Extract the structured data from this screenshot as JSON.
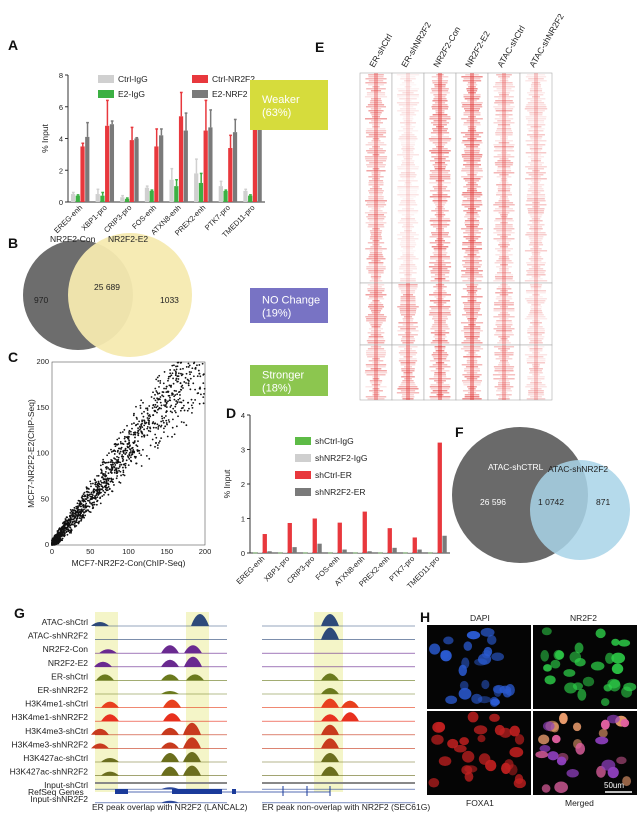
{
  "panels": {
    "A": "A",
    "B": "B",
    "C": "C",
    "D": "D",
    "E": "E",
    "F": "F",
    "G": "G",
    "H": "H"
  },
  "chart_a": {
    "type": "bar",
    "ylabel": "% Input",
    "ylim": [
      0,
      8
    ],
    "yticks": [
      0,
      2,
      4,
      6,
      8
    ],
    "categories": [
      "EREG-enh",
      "XBP1-pro",
      "CRIP3-pro",
      "FOS-enh",
      "ATXN8-enh",
      "PREX2-enh",
      "PTK7-pro",
      "TMED11-pro"
    ],
    "series": [
      {
        "name": "Ctrl-IgG",
        "color": "#d0d0d0",
        "values": [
          0.5,
          0.5,
          0.3,
          0.9,
          1.4,
          1.8,
          1.0,
          0.7
        ],
        "err": [
          0.1,
          0.3,
          0.1,
          0.1,
          0.7,
          0.9,
          0.3,
          0.1
        ]
      },
      {
        "name": "E2-IgG",
        "color": "#3cb043",
        "values": [
          0.4,
          0.4,
          0.2,
          0.7,
          1.0,
          1.2,
          0.7,
          0.4
        ],
        "err": [
          0.05,
          0.2,
          0.05,
          0.05,
          0.4,
          0.6,
          0.05,
          0.05
        ]
      },
      {
        "name": "Ctrl-NR2F2",
        "color": "#e8383d",
        "values": [
          3.5,
          4.8,
          3.9,
          3.5,
          5.4,
          4.5,
          3.4,
          5.0
        ],
        "err": [
          0.2,
          1.6,
          0.8,
          1.1,
          1.5,
          1.9,
          0.8,
          1.6
        ]
      },
      {
        "name": "E2-NRF2",
        "color": "#7a7a7a",
        "values": [
          4.1,
          4.9,
          4.0,
          4.2,
          4.5,
          4.7,
          4.4,
          5.5
        ],
        "err": [
          0.9,
          0.2,
          0.05,
          0.4,
          1.1,
          1.1,
          0.8,
          1.0
        ]
      }
    ]
  },
  "venn_b": {
    "left": "NR2F2-Con",
    "right": "NR2F2-E2",
    "left_only": "970",
    "both": "25 689",
    "right_only": "1033"
  },
  "chart_c": {
    "type": "scatter",
    "xlabel": "MCF7-NR2F2-Con(ChIP-Seq)",
    "ylabel": "MCF7-NR2F2-E2(ChIP-Seq)",
    "xlim": [
      0,
      200
    ],
    "ylim": [
      0,
      200
    ],
    "ticks": [
      0,
      50,
      100,
      150,
      200
    ]
  },
  "chart_d": {
    "type": "bar",
    "ylabel": "% Input",
    "ylim": [
      0,
      4
    ],
    "yticks": [
      0,
      1,
      2,
      3,
      4
    ],
    "categories": [
      "EREG-enh",
      "XBP1-pro",
      "CRIP3-pro",
      "FOS-enh",
      "ATXN8-enh",
      "PREX2-enh",
      "PTK7-pro",
      "TMED11-pro"
    ],
    "series": [
      {
        "name": "shCtrl-IgG",
        "color": "#5dbb46",
        "values": [
          0.01,
          0.01,
          0.01,
          0.01,
          0.01,
          0.01,
          0.01,
          0.01
        ]
      },
      {
        "name": "shNR2F2-IgG",
        "color": "#cfcfcf",
        "values": [
          0.02,
          0.02,
          0.02,
          0.02,
          0.02,
          0.02,
          0.02,
          0.03
        ]
      },
      {
        "name": "shCtrl-ER",
        "color": "#e8383d",
        "values": [
          0.55,
          0.87,
          1.0,
          0.88,
          1.2,
          0.72,
          0.45,
          3.2
        ]
      },
      {
        "name": "shNR2F2-ER",
        "color": "#7a7a7a",
        "values": [
          0.05,
          0.17,
          0.27,
          0.1,
          0.05,
          0.15,
          0.1,
          0.5
        ]
      }
    ]
  },
  "heatmap_e": {
    "columns": [
      "ER-shCtrl",
      "ER-shNR2F2",
      "NR2F2-Con",
      "NR2F2-E2",
      "ATAC-shCtrl",
      "ATAC-shNR2F2"
    ],
    "groups": [
      {
        "label": "Weaker",
        "pct": "(63%)",
        "color": "#d6dc3c"
      },
      {
        "label": "NO Change",
        "pct": "(19%)",
        "color": "#7873c4"
      },
      {
        "label": "Stronger",
        "pct": "(18%)",
        "color": "#8cc64f"
      }
    ]
  },
  "venn_f": {
    "left": "ATAC-shCTRL",
    "right": "ATAC-shNR2F2",
    "left_only": "26 596",
    "both": "1 0742",
    "right_only": "871"
  },
  "tracks_g": {
    "tracks": [
      {
        "name": "ATAC-shCtrl",
        "color": "#2e4a7a"
      },
      {
        "name": "ATAC-shNR2F2",
        "color": "#2e4a7a"
      },
      {
        "name": "NR2F2-Con",
        "color": "#6a2a90"
      },
      {
        "name": "NR2F2-E2",
        "color": "#6a2a90"
      },
      {
        "name": "ER-shCtrl",
        "color": "#6b7a1e"
      },
      {
        "name": "ER-shNR2F2",
        "color": "#6b7a1e"
      },
      {
        "name": "H3K4me1-shCtrl",
        "color": "#e8401e"
      },
      {
        "name": "H3K4me1-shNR2F2",
        "color": "#e8301e"
      },
      {
        "name": "H3K4me3-shCtrl",
        "color": "#c83a1e"
      },
      {
        "name": "H3K4me3-shNR2F2",
        "color": "#c83a1e"
      },
      {
        "name": "H3K427ac-shCtrl",
        "color": "#6b6e1e"
      },
      {
        "name": "H3K427ac-shNR2F2",
        "color": "#6b6e1e"
      },
      {
        "name": "Input-shCtrl",
        "color": "#2e4a9a"
      },
      {
        "name": "Input-shNR2F2",
        "color": "#2e4a9a"
      }
    ],
    "genes_label": "RefSeq Genes",
    "caption_left": "ER peak overlap with NR2F2 (LANCAL2)",
    "caption_right": "ER peak non-overlap with NR2F2 (SEC61G)"
  },
  "images_h": {
    "tl": "DAPI",
    "tr": "NR2F2",
    "bl": "FOXA1",
    "br": "Merged",
    "scale": "50um"
  }
}
